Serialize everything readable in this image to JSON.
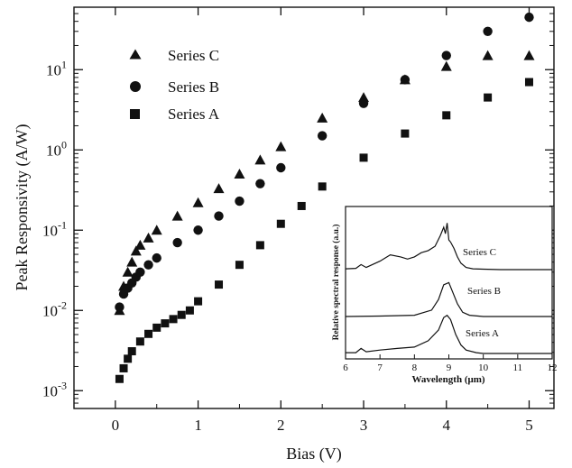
{
  "chart_data": [
    {
      "type": "scatter",
      "title": "",
      "xlabel": "Bias (V)",
      "ylabel": "Peak Responsivity (A/W)",
      "xlim": [
        -0.5,
        5.3
      ],
      "ylim": [
        0.0006,
        60
      ],
      "yscale": "log",
      "grid": false,
      "legend_position": "top-left",
      "x_ticks": [
        {
          "value": 0,
          "label": "0"
        },
        {
          "value": 1,
          "label": "1"
        },
        {
          "value": 2,
          "label": "2"
        },
        {
          "value": 3,
          "label": "3"
        },
        {
          "value": 4,
          "label": "4"
        },
        {
          "value": 5,
          "label": "5"
        }
      ],
      "y_ticks": [
        {
          "value": 0.001,
          "base": "10",
          "exp": "-3"
        },
        {
          "value": 0.01,
          "base": "10",
          "exp": "-2"
        },
        {
          "value": 0.1,
          "base": "10",
          "exp": "-1"
        },
        {
          "value": 1,
          "base": "10",
          "exp": "0"
        },
        {
          "value": 10,
          "base": "10",
          "exp": "1"
        }
      ],
      "series": [
        {
          "name": "Series C",
          "marker": "triangle",
          "x": [
            0.05,
            0.1,
            0.15,
            0.2,
            0.25,
            0.3,
            0.4,
            0.5,
            0.75,
            1.0,
            1.25,
            1.5,
            1.75,
            2.0,
            2.5,
            3.0,
            3.5,
            4.0,
            4.5,
            5.0
          ],
          "y": [
            0.01,
            0.02,
            0.03,
            0.04,
            0.055,
            0.065,
            0.08,
            0.1,
            0.15,
            0.22,
            0.33,
            0.5,
            0.75,
            1.1,
            2.5,
            4.5,
            7.5,
            11,
            15,
            15
          ]
        },
        {
          "name": "Series B",
          "marker": "circle",
          "x": [
            0.05,
            0.1,
            0.15,
            0.2,
            0.25,
            0.3,
            0.4,
            0.5,
            0.75,
            1.0,
            1.25,
            1.5,
            1.75,
            2.0,
            2.5,
            3.0,
            3.5,
            4.0,
            4.5,
            5.0
          ],
          "y": [
            0.011,
            0.016,
            0.019,
            0.022,
            0.026,
            0.03,
            0.037,
            0.045,
            0.07,
            0.1,
            0.15,
            0.23,
            0.38,
            0.6,
            1.5,
            3.8,
            7.5,
            15,
            30,
            45
          ]
        },
        {
          "name": "Series A",
          "marker": "square",
          "x": [
            0.05,
            0.1,
            0.15,
            0.2,
            0.3,
            0.4,
            0.5,
            0.6,
            0.7,
            0.8,
            0.9,
            1.0,
            1.25,
            1.5,
            1.75,
            2.0,
            2.25,
            2.5,
            3.0,
            3.5,
            4.0,
            4.5,
            5.0
          ],
          "y": [
            0.0014,
            0.0019,
            0.0025,
            0.0031,
            0.0041,
            0.0051,
            0.0061,
            0.0069,
            0.0078,
            0.0088,
            0.01,
            0.013,
            0.021,
            0.037,
            0.065,
            0.12,
            0.2,
            0.35,
            0.8,
            1.6,
            2.7,
            4.5,
            7.0
          ]
        }
      ]
    },
    {
      "type": "line",
      "title": "",
      "xlabel": "Wavelength (μm)",
      "ylabel": "Relative spectral response (a.u.)",
      "xlim": [
        6,
        12
      ],
      "x_ticks": [
        {
          "value": 6,
          "label": "6"
        },
        {
          "value": 7,
          "label": "7"
        },
        {
          "value": 8,
          "label": "8"
        },
        {
          "value": 9,
          "label": "9"
        },
        {
          "value": 10,
          "label": "10"
        },
        {
          "value": 11,
          "label": "11"
        },
        {
          "value": 12,
          "label": "12"
        }
      ],
      "series": [
        {
          "name": "Series C",
          "offset": 2.0,
          "x": [
            6.0,
            6.3,
            6.45,
            6.6,
            7.0,
            7.3,
            7.6,
            7.8,
            8.0,
            8.2,
            8.4,
            8.6,
            8.75,
            8.85,
            8.9,
            8.95,
            9.0,
            9.05,
            9.15,
            9.25,
            9.35,
            9.5,
            9.7,
            10.0,
            10.5,
            11.0,
            12.0
          ],
          "y": [
            0.02,
            0.03,
            0.12,
            0.05,
            0.2,
            0.35,
            0.3,
            0.25,
            0.3,
            0.4,
            0.45,
            0.55,
            0.8,
            1.0,
            0.85,
            1.1,
            0.7,
            0.65,
            0.5,
            0.3,
            0.15,
            0.05,
            0.02,
            0.01,
            0.0,
            0.0,
            0.0
          ]
        },
        {
          "name": "Series B",
          "offset": 1.0,
          "x": [
            6.0,
            7.0,
            8.0,
            8.5,
            8.7,
            8.85,
            9.0,
            9.1,
            9.25,
            9.4,
            9.6,
            10.0,
            11.0,
            12.0
          ],
          "y": [
            0.0,
            0.01,
            0.03,
            0.15,
            0.4,
            0.75,
            0.8,
            0.6,
            0.3,
            0.1,
            0.03,
            0.0,
            0.0,
            0.0
          ]
        },
        {
          "name": "Series A",
          "offset": 0.0,
          "x": [
            6.0,
            6.3,
            6.45,
            6.6,
            7.0,
            7.5,
            8.0,
            8.4,
            8.7,
            8.85,
            8.95,
            9.05,
            9.2,
            9.35,
            9.5,
            9.8,
            10.0,
            11.0,
            12.0
          ],
          "y": [
            0.02,
            0.02,
            0.12,
            0.04,
            0.08,
            0.12,
            0.15,
            0.3,
            0.55,
            0.85,
            0.9,
            0.8,
            0.45,
            0.2,
            0.08,
            0.02,
            0.0,
            0.0,
            0.0
          ]
        }
      ]
    }
  ]
}
